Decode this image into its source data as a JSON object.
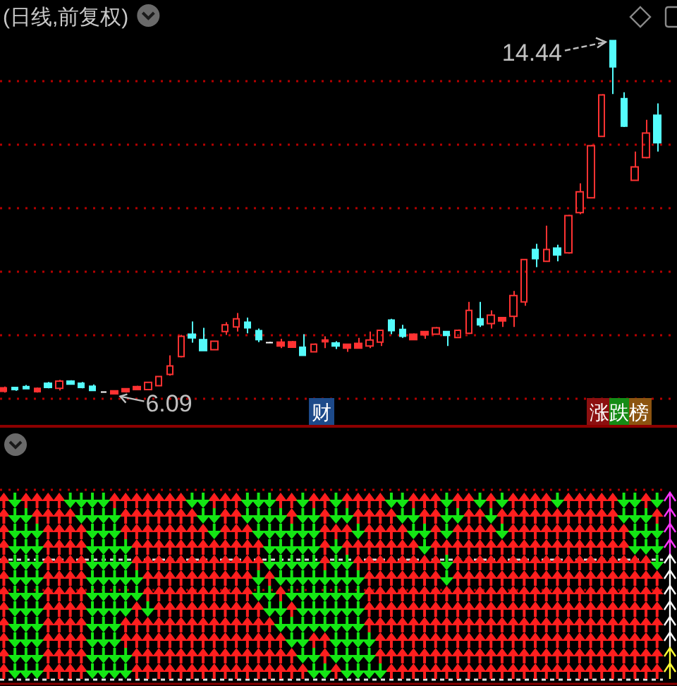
{
  "chart_data": {
    "type": "candlestick",
    "title": "(日线,前复权)",
    "categories": [
      null,
      null,
      null,
      null,
      null,
      null,
      null,
      null,
      null,
      null,
      null,
      null,
      null,
      null,
      null,
      null,
      null,
      null,
      null,
      null,
      null,
      null,
      null,
      null,
      null,
      null,
      null,
      null,
      null,
      null,
      null,
      null,
      null,
      null,
      null,
      null,
      null,
      null,
      null,
      null,
      null,
      null,
      null,
      null,
      null,
      null,
      null,
      null,
      null,
      null,
      null,
      null,
      null,
      null,
      null,
      null,
      null,
      null,
      null,
      null
    ],
    "ohlc": [
      [
        6.16,
        6.27,
        6.13,
        6.24
      ],
      [
        6.25,
        6.25,
        6.17,
        6.2
      ],
      [
        6.27,
        6.31,
        6.22,
        6.22
      ],
      [
        6.15,
        6.25,
        6.13,
        6.23
      ],
      [
        6.35,
        6.38,
        6.23,
        6.25
      ],
      [
        6.23,
        6.43,
        6.18,
        6.4
      ],
      [
        6.4,
        6.42,
        6.32,
        6.33
      ],
      [
        6.35,
        6.38,
        6.23,
        6.25
      ],
      [
        6.28,
        6.32,
        6.17,
        6.18
      ],
      [
        6.14,
        6.15,
        6.13,
        6.14
      ],
      [
        6.1,
        6.18,
        6.09,
        6.17
      ],
      [
        6.15,
        6.23,
        6.13,
        6.22
      ],
      [
        6.2,
        6.29,
        6.19,
        6.27
      ],
      [
        6.2,
        6.38,
        6.19,
        6.37
      ],
      [
        6.29,
        6.52,
        6.28,
        6.51
      ],
      [
        6.56,
        7.01,
        6.53,
        6.76
      ],
      [
        6.98,
        7.49,
        6.96,
        7.46
      ],
      [
        7.51,
        7.81,
        7.31,
        7.42
      ],
      [
        7.38,
        7.66,
        7.12,
        7.12
      ],
      [
        7.14,
        7.36,
        7.13,
        7.34
      ],
      [
        7.57,
        7.79,
        7.49,
        7.73
      ],
      [
        7.68,
        8.01,
        7.57,
        7.87
      ],
      [
        7.79,
        7.9,
        7.53,
        7.66
      ],
      [
        7.59,
        7.64,
        7.32,
        7.38
      ],
      [
        7.31,
        7.33,
        7.29,
        7.31
      ],
      [
        7.23,
        7.4,
        7.18,
        7.32
      ],
      [
        7.2,
        7.35,
        7.19,
        7.33
      ],
      [
        7.2,
        7.51,
        7.01,
        7.01
      ],
      [
        7.09,
        7.29,
        7.08,
        7.27
      ],
      [
        7.33,
        7.46,
        7.18,
        7.37
      ],
      [
        7.3,
        7.34,
        7.16,
        7.23
      ],
      [
        7.18,
        7.28,
        7.09,
        7.27
      ],
      [
        7.18,
        7.42,
        7.17,
        7.29
      ],
      [
        7.23,
        7.57,
        7.18,
        7.37
      ],
      [
        7.32,
        7.61,
        7.23,
        7.6
      ],
      [
        7.84,
        7.87,
        7.51,
        7.59
      ],
      [
        7.62,
        7.73,
        7.42,
        7.46
      ],
      [
        7.38,
        7.53,
        7.37,
        7.51
      ],
      [
        7.49,
        7.58,
        7.4,
        7.57
      ],
      [
        7.51,
        7.68,
        7.5,
        7.66
      ],
      [
        7.57,
        7.58,
        7.23,
        7.48
      ],
      [
        7.43,
        7.62,
        7.42,
        7.6
      ],
      [
        7.53,
        8.27,
        7.51,
        8.07
      ],
      [
        7.87,
        8.27,
        7.68,
        7.73
      ],
      [
        7.76,
        8.07,
        7.64,
        7.96
      ],
      [
        7.82,
        7.91,
        7.68,
        7.9
      ],
      [
        7.93,
        8.53,
        7.68,
        8.42
      ],
      [
        8.27,
        9.28,
        8.18,
        9.27
      ],
      [
        9.51,
        9.64,
        9.09,
        9.29
      ],
      [
        9.23,
        10.07,
        9.22,
        9.51
      ],
      [
        9.54,
        9.62,
        9.23,
        9.38
      ],
      [
        9.43,
        10.33,
        9.41,
        10.31
      ],
      [
        10.38,
        11.07,
        10.34,
        10.87
      ],
      [
        10.73,
        11.98,
        10.72,
        11.96
      ],
      [
        12.18,
        13.18,
        12.17,
        13.16
      ],
      [
        14.44,
        14.44,
        13.18,
        13.82
      ],
      [
        13.07,
        13.22,
        12.4,
        12.42
      ],
      [
        11.14,
        11.82,
        11.13,
        11.46
      ],
      [
        11.68,
        12.57,
        11.66,
        12.26
      ],
      [
        12.68,
        12.96,
        11.82,
        12.03
      ]
    ],
    "colors": [
      "#ff3232",
      "#54fcfc",
      "#54fcfc",
      "#ff3232",
      "#54fcfc",
      "#ff3232",
      "#54fcfc",
      "#54fcfc",
      "#54fcfc",
      "#ffffff",
      "#ff3232",
      "#ff3232",
      "#ff3232",
      "#ff3232",
      "#ff3232",
      "#ff3232",
      "#ff3232",
      "#54fcfc",
      "#54fcfc",
      "#ff3232",
      "#ff3232",
      "#ff3232",
      "#54fcfc",
      "#54fcfc",
      "#ffffff",
      "#ff3232",
      "#ff3232",
      "#54fcfc",
      "#ff3232",
      "#ff3232",
      "#54fcfc",
      "#ff3232",
      "#ff3232",
      "#ff3232",
      "#ff3232",
      "#54fcfc",
      "#54fcfc",
      "#ff3232",
      "#ff3232",
      "#ff3232",
      "#54fcfc",
      "#ff3232",
      "#ff3232",
      "#54fcfc",
      "#ff3232",
      "#ff3232",
      "#ff3232",
      "#ff3232",
      "#54fcfc",
      "#ff3232",
      "#54fcfc",
      "#ff3232",
      "#ff3232",
      "#ff3232",
      "#ff3232",
      "#54fcfc",
      "#54fcfc",
      "#ff3232",
      "#ff3232",
      "#54fcfc"
    ],
    "yticks": [
      {
        "value": 6,
        "label": null
      },
      {
        "value": 7.5,
        "label": null
      },
      {
        "value": 9,
        "label": null
      },
      {
        "value": 10.5,
        "label": null
      },
      {
        "value": 12,
        "label": null
      },
      {
        "value": 13.5,
        "label": null
      }
    ],
    "grid": "y",
    "annotations": [
      "14.44",
      "6.09",
      "财",
      "涨跌榜"
    ]
  }
}
